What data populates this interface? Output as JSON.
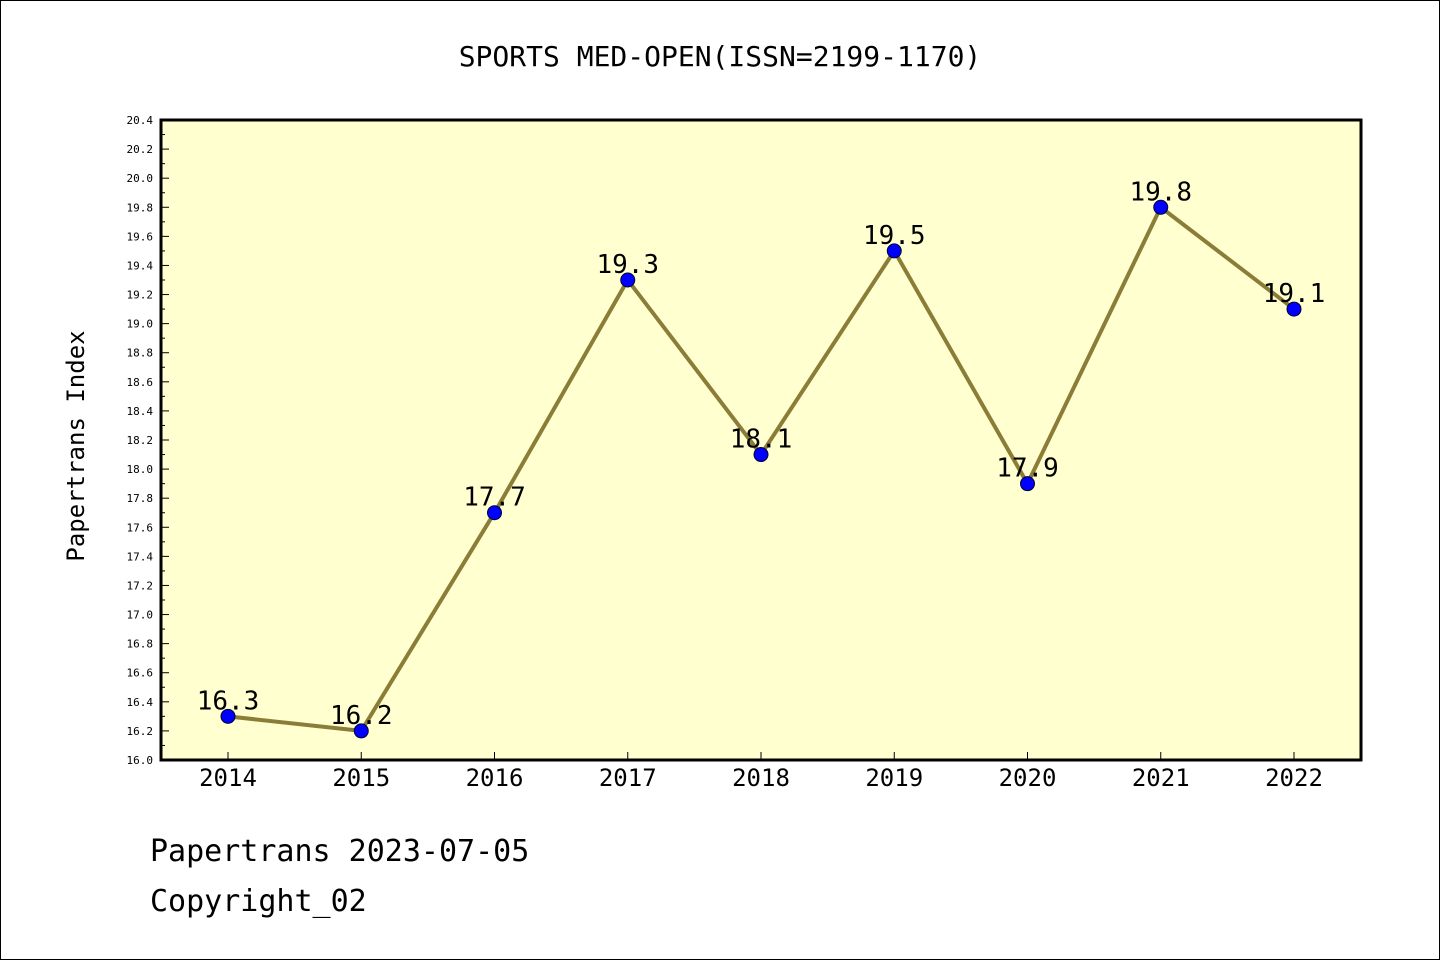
{
  "chart_data": {
    "type": "line",
    "title": "SPORTS MED-OPEN(ISSN=2199-1170)",
    "xlabel": "",
    "ylabel": "Papertrans Index",
    "categories": [
      "2014",
      "2015",
      "2016",
      "2017",
      "2018",
      "2019",
      "2020",
      "2021",
      "2022"
    ],
    "series": [
      {
        "values": [
          16.3,
          16.2,
          17.7,
          19.3,
          18.1,
          19.5,
          17.9,
          19.8,
          19.1
        ],
        "data_labels": [
          "16.3",
          "16.2",
          "17.7",
          "19.3",
          "18.1",
          "19.5",
          "17.9",
          "19.8",
          "19.1"
        ]
      }
    ],
    "ylim": [
      16.0,
      20.4
    ],
    "yticks": [
      "16.0",
      "16.2",
      "16.4",
      "16.6",
      "16.8",
      "17.0",
      "17.2",
      "17.4",
      "17.6",
      "17.8",
      "18.0",
      "18.2",
      "18.4",
      "18.6",
      "18.8",
      "19.0",
      "19.2",
      "19.4",
      "19.6",
      "19.8",
      "20.0",
      "20.2",
      "20.4"
    ],
    "grid": false,
    "colors": {
      "plot_background": "#ffffd0",
      "line": "#8b7d38",
      "marker": "#0000ff"
    }
  },
  "footer": {
    "line1": "Papertrans 2023-07-05",
    "line2": "Copyright_02"
  }
}
